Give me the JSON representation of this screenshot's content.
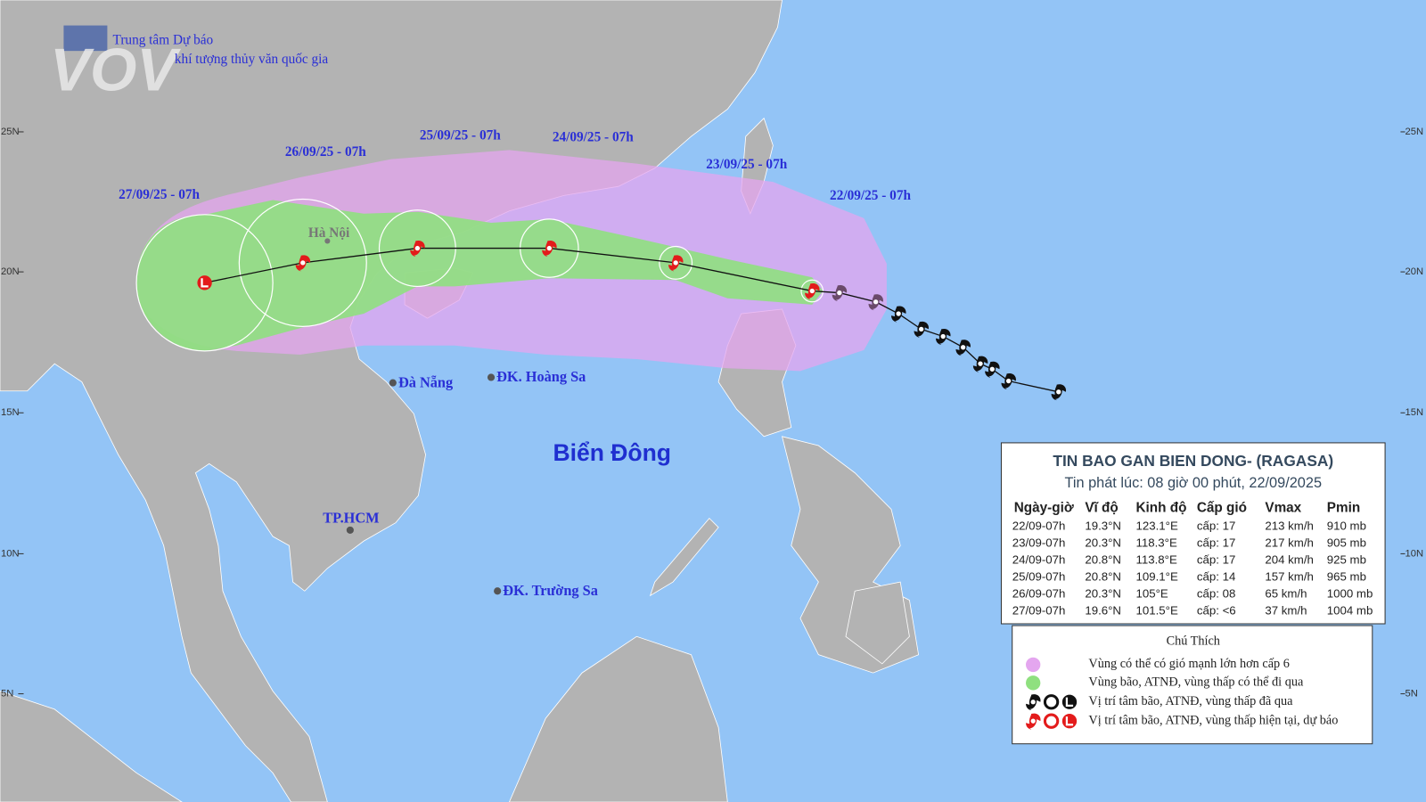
{
  "header": {
    "org_line1": "Trung tâm Dự báo",
    "org_line2": "khí tượng thủy văn quốc gia",
    "logo": "VOV"
  },
  "lat_labels_left": [
    "25N",
    "20N",
    "15N",
    "10N",
    "5N"
  ],
  "lat_labels_right": [
    "25N",
    "20N",
    "15N",
    "10N",
    "5N"
  ],
  "track_labels": [
    "27/09/25 - 07h",
    "26/09/25 - 07h",
    "25/09/25 - 07h",
    "24/09/25 - 07h",
    "23/09/25 - 07h",
    "22/09/25 - 07h"
  ],
  "places": [
    "Hà Nội",
    "Đà Nẵng",
    "ĐK. Hoàng Sa",
    "TP.HCM",
    "ĐK. Trường Sa"
  ],
  "sea_label": "Biển Đông",
  "table": {
    "title": "TIN BAO GAN BIEN DONG- (RAGASA)",
    "subtitle": "Tin phát lúc: 08 giờ 00 phút, 22/09/2025",
    "columns": [
      "Ngày-giờ",
      "Vĩ độ",
      "Kinh độ",
      "Cấp gió",
      "Vmax",
      "Pmin"
    ],
    "rows": [
      [
        "22/09-07h",
        "19.3°N",
        "123.1°E",
        "cấp: 17",
        "213 km/h",
        "910 mb"
      ],
      [
        "23/09-07h",
        "20.3°N",
        "118.3°E",
        "cấp: 17",
        "217 km/h",
        "905 mb"
      ],
      [
        "24/09-07h",
        "20.8°N",
        "113.8°E",
        "cấp: 17",
        "204 km/h",
        "925 mb"
      ],
      [
        "25/09-07h",
        "20.8°N",
        "109.1°E",
        "cấp: 14",
        "157 km/h",
        "965 mb"
      ],
      [
        "26/09-07h",
        "20.3°N",
        "105°E",
        "cấp: 08",
        "65 km/h",
        "1000 mb"
      ],
      [
        "27/09-07h",
        "19.6°N",
        "101.5°E",
        "cấp: <6",
        "37 km/h",
        "1004 mb"
      ]
    ]
  },
  "legend": {
    "title": "Chú Thích",
    "items": [
      "Vùng có thể có gió mạnh lớn hơn cấp 6",
      "Vùng bão, ATNĐ, vùng thấp có thể đi qua",
      "Vị trí tâm bão, ATNĐ, vùng thấp đã qua",
      "Vị trí tâm bão, ATNĐ, vùng thấp hiện tại, dự báo"
    ]
  }
}
